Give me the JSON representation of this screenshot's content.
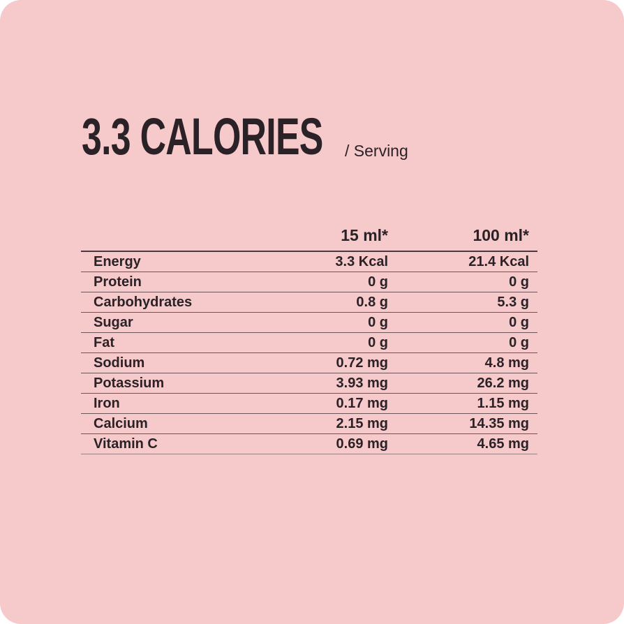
{
  "heading": {
    "title": "3.3 CALORIES",
    "subtitle": "/ Serving"
  },
  "colors": {
    "background": "#f6c9cb",
    "text": "#2a2226"
  },
  "table": {
    "columns": [
      "",
      "15 ml*",
      "100 ml*"
    ],
    "rows": [
      {
        "nutrient": "Energy",
        "per_15ml": "3.3 Kcal",
        "per_100ml": "21.4 Kcal"
      },
      {
        "nutrient": "Protein",
        "per_15ml": "0 g",
        "per_100ml": "0 g"
      },
      {
        "nutrient": "Carbohydrates",
        "per_15ml": "0.8 g",
        "per_100ml": "5.3 g"
      },
      {
        "nutrient": "Sugar",
        "per_15ml": "0 g",
        "per_100ml": "0 g"
      },
      {
        "nutrient": "Fat",
        "per_15ml": "0 g",
        "per_100ml": "0 g"
      },
      {
        "nutrient": "Sodium",
        "per_15ml": "0.72 mg",
        "per_100ml": "4.8 mg"
      },
      {
        "nutrient": "Potassium",
        "per_15ml": "3.93 mg",
        "per_100ml": "26.2 mg"
      },
      {
        "nutrient": "Iron",
        "per_15ml": "0.17 mg",
        "per_100ml": "1.15 mg"
      },
      {
        "nutrient": "Calcium",
        "per_15ml": "2.15 mg",
        "per_100ml": "14.35 mg"
      },
      {
        "nutrient": "Vitamin C",
        "per_15ml": "0.69 mg",
        "per_100ml": "4.65 mg"
      }
    ]
  }
}
